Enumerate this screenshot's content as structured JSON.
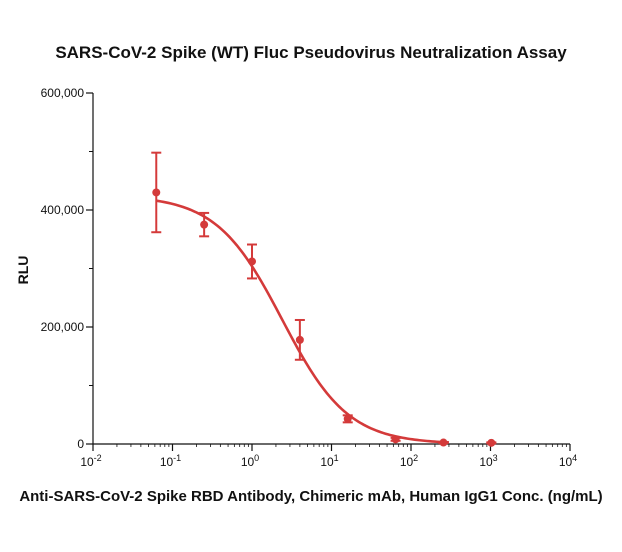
{
  "chart_data": {
    "type": "scatter",
    "title": "SARS-CoV-2 Spike (WT) Fluc Pseudovirus Neutralization Assay",
    "xlabel": "Anti-SARS-CoV-2 Spike RBD Antibody, Chimeric mAb, Human IgG1 Conc. (ng/mL)",
    "ylabel": "RLU",
    "x_scale": "log",
    "xlim": [
      0.01,
      10000
    ],
    "ylim": [
      0,
      600000
    ],
    "x_ticks": [
      {
        "base": "10",
        "exp": "-2",
        "value": 0.01
      },
      {
        "base": "10",
        "exp": "-1",
        "value": 0.1
      },
      {
        "base": "10",
        "exp": "0",
        "value": 1
      },
      {
        "base": "10",
        "exp": "1",
        "value": 10
      },
      {
        "base": "10",
        "exp": "2",
        "value": 100
      },
      {
        "base": "10",
        "exp": "3",
        "value": 1000
      },
      {
        "base": "10",
        "exp": "4",
        "value": 10000
      }
    ],
    "y_ticks": [
      {
        "label": "0",
        "value": 0
      },
      {
        "label": "200,000",
        "value": 200000
      },
      {
        "label": "400,000",
        "value": 400000
      },
      {
        "label": "600,000",
        "value": 600000
      }
    ],
    "grid": false,
    "color": "#d43a3a",
    "series": [
      {
        "x": [
          0.0625,
          0.25,
          1,
          4,
          16,
          64,
          256,
          1024
        ],
        "y": [
          430000,
          375000,
          312000,
          178000,
          43000,
          8000,
          2500,
          2000
        ],
        "err": [
          68000,
          20000,
          29000,
          34000,
          6000,
          2500,
          1000,
          800
        ]
      }
    ],
    "fit": {
      "top": 425000,
      "bottom": 0,
      "ec50": 2.4,
      "hill": 1.05
    }
  }
}
